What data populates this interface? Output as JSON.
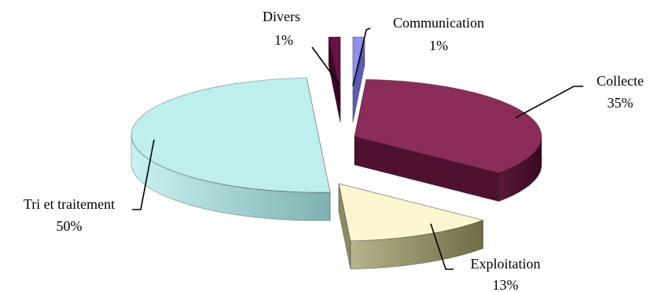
{
  "chart_data": {
    "type": "pie",
    "style": "3d-exploded",
    "title": "",
    "slices": [
      {
        "label": "Communication",
        "percent_label": "1%",
        "value": 1,
        "color": "#8f8ef0",
        "side_color": "#5d5cb8"
      },
      {
        "label": "Collecte",
        "percent_label": "35%",
        "value": 35,
        "color": "#8b2c5a",
        "side_color": "#4e1230"
      },
      {
        "label": "Exploitation",
        "percent_label": "13%",
        "value": 13,
        "color": "#fbf6cf",
        "side_color": "#8d8a63"
      },
      {
        "label": "Tri et traitement",
        "percent_label": "50%",
        "value": 50,
        "color": "#bfeeee",
        "side_color": "#8fc4c4"
      },
      {
        "label": "Divers",
        "percent_label": "1%",
        "value": 1,
        "color": "#6a1046",
        "side_color": "#3c0728"
      }
    ],
    "legend": "none",
    "data_labels": "outside with leader lines"
  }
}
